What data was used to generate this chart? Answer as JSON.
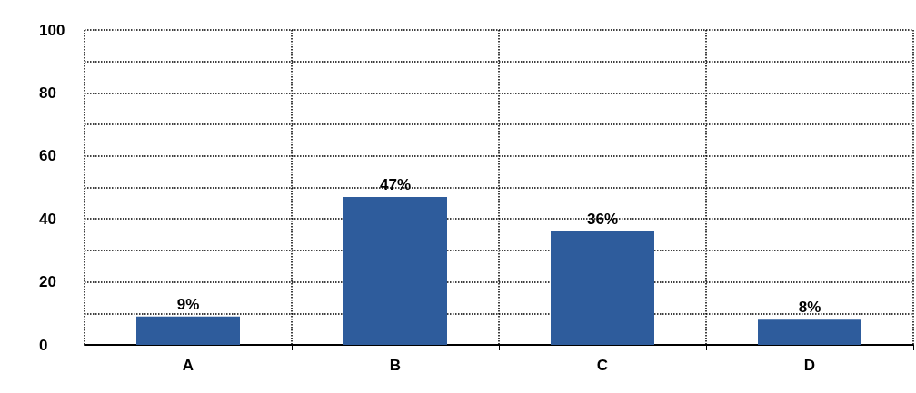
{
  "chart_data": {
    "type": "bar",
    "categories": [
      "A",
      "B",
      "C",
      "D"
    ],
    "values": [
      9,
      47,
      36,
      8
    ],
    "value_labels": [
      "9%",
      "47%",
      "36%",
      "8%"
    ],
    "color": "#2e5c9c",
    "ylim": [
      0,
      100
    ],
    "yticks": [
      0,
      {
        "value": 10,
        "label": null
      },
      20,
      {
        "value": 30,
        "label": null
      },
      40,
      {
        "value": 50,
        "label": null
      },
      60,
      {
        "value": 70,
        "label": null
      },
      80,
      {
        "value": 90,
        "label": null
      },
      100
    ],
    "grid": true
  }
}
